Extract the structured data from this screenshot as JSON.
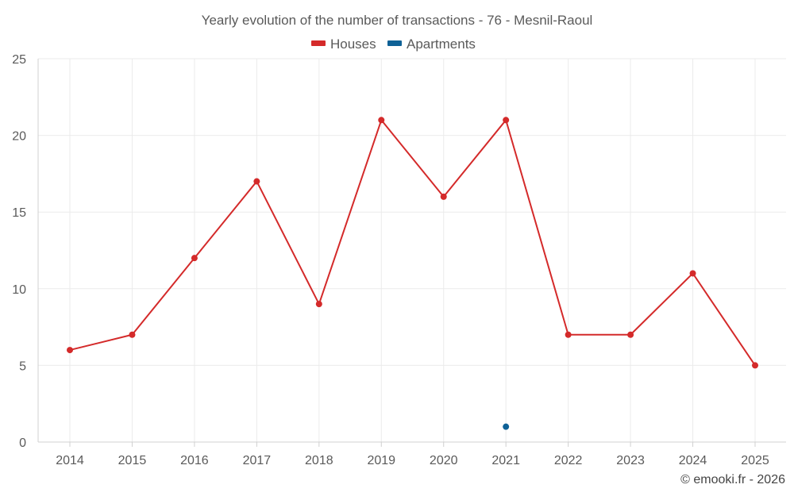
{
  "chart_data": {
    "type": "line",
    "title": "Yearly evolution of the number of transactions - 76 - Mesnil-Raoul",
    "categories": [
      "2014",
      "2015",
      "2016",
      "2017",
      "2018",
      "2019",
      "2020",
      "2021",
      "2022",
      "2023",
      "2024",
      "2025"
    ],
    "series": [
      {
        "name": "Houses",
        "color": "#d42a2a",
        "values": [
          6,
          7,
          12,
          17,
          9,
          21,
          16,
          21,
          7,
          7,
          11,
          5
        ]
      },
      {
        "name": "Apartments",
        "color": "#0e6196",
        "values": [
          null,
          null,
          null,
          null,
          null,
          null,
          null,
          1,
          null,
          null,
          null,
          null
        ]
      }
    ],
    "yticks": [
      "0",
      "5",
      "10",
      "15",
      "20",
      "25"
    ],
    "ylim": [
      0,
      25
    ],
    "legend_position": "top-center",
    "grid": true
  },
  "credit": "© emooki.fr - 2026"
}
